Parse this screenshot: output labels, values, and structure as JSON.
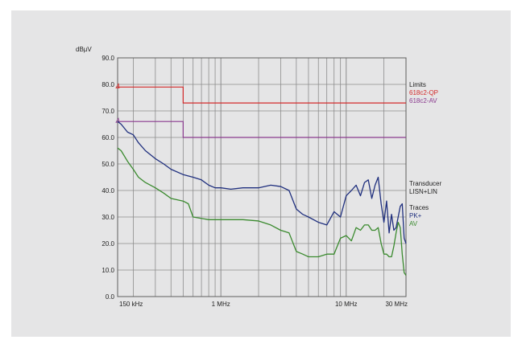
{
  "chart_data": {
    "type": "line",
    "ylabel": "dBµV",
    "yticks": [
      "90.0",
      "80.0",
      "70.0",
      "60.0",
      "50.0",
      "40.0",
      "30.0",
      "20.0",
      "10.0",
      "0.0"
    ],
    "ylim": [
      0,
      90
    ],
    "xscale": "log",
    "xlim_mhz": [
      0.15,
      30
    ],
    "xticks": [
      {
        "label": "150 kHz",
        "mhz": 0.15
      },
      {
        "label": "1 MHz",
        "mhz": 1
      },
      {
        "label": "10 MHz",
        "mhz": 10
      },
      {
        "label": "30 MHz",
        "mhz": 30
      }
    ],
    "grid": true,
    "legend": {
      "limits_title": "Limits",
      "limit_qp": "618c2-QP",
      "limit_av": "618c2-AV",
      "transducer_title": "Transducer",
      "transducer": "LISN+LIN",
      "traces_title": "Traces",
      "trace_pk": "PK+",
      "trace_av": "AV"
    },
    "limits": [
      {
        "name": "618c2-QP",
        "color": "#d42a2a",
        "points": [
          [
            0.15,
            79
          ],
          [
            0.5,
            79
          ],
          [
            0.5,
            73
          ],
          [
            30,
            73
          ]
        ]
      },
      {
        "name": "618c2-AV",
        "color": "#8a3a8e",
        "points": [
          [
            0.15,
            66
          ],
          [
            0.5,
            66
          ],
          [
            0.5,
            60
          ],
          [
            30,
            60
          ]
        ]
      }
    ],
    "series": [
      {
        "name": "PK+",
        "color": "#1f2f7e",
        "points": [
          [
            0.15,
            66
          ],
          [
            0.16,
            65
          ],
          [
            0.18,
            62
          ],
          [
            0.2,
            61
          ],
          [
            0.22,
            58
          ],
          [
            0.25,
            55
          ],
          [
            0.3,
            52
          ],
          [
            0.35,
            50
          ],
          [
            0.4,
            48
          ],
          [
            0.5,
            46
          ],
          [
            0.6,
            45
          ],
          [
            0.7,
            44
          ],
          [
            0.8,
            42
          ],
          [
            0.9,
            41
          ],
          [
            1,
            41
          ],
          [
            1.2,
            40.5
          ],
          [
            1.5,
            41
          ],
          [
            2,
            41
          ],
          [
            2.5,
            42
          ],
          [
            3,
            41.5
          ],
          [
            3.5,
            40
          ],
          [
            4,
            33
          ],
          [
            4.5,
            31
          ],
          [
            5,
            30
          ],
          [
            6,
            28
          ],
          [
            7,
            27
          ],
          [
            8,
            32
          ],
          [
            9,
            30
          ],
          [
            10,
            38
          ],
          [
            11,
            40
          ],
          [
            12,
            42
          ],
          [
            13,
            38
          ],
          [
            14,
            43
          ],
          [
            15,
            44
          ],
          [
            16,
            37
          ],
          [
            17,
            42
          ],
          [
            18,
            45
          ],
          [
            19,
            35
          ],
          [
            20,
            28
          ],
          [
            21,
            36
          ],
          [
            22,
            24
          ],
          [
            23,
            31
          ],
          [
            24,
            25
          ],
          [
            25,
            26
          ],
          [
            27,
            34
          ],
          [
            28,
            35
          ],
          [
            29,
            22
          ],
          [
            30,
            20
          ]
        ]
      },
      {
        "name": "AV",
        "color": "#3a8a2e",
        "points": [
          [
            0.15,
            56
          ],
          [
            0.16,
            55
          ],
          [
            0.18,
            51
          ],
          [
            0.2,
            48
          ],
          [
            0.22,
            45
          ],
          [
            0.25,
            43
          ],
          [
            0.3,
            41
          ],
          [
            0.35,
            39
          ],
          [
            0.4,
            37
          ],
          [
            0.5,
            36
          ],
          [
            0.55,
            35
          ],
          [
            0.6,
            30
          ],
          [
            0.8,
            29
          ],
          [
            1,
            29
          ],
          [
            1.5,
            29
          ],
          [
            2,
            28.5
          ],
          [
            2.5,
            27
          ],
          [
            3,
            25
          ],
          [
            3.5,
            24
          ],
          [
            4,
            17
          ],
          [
            4.5,
            16
          ],
          [
            5,
            15
          ],
          [
            6,
            15
          ],
          [
            7,
            16
          ],
          [
            8,
            16
          ],
          [
            9,
            22
          ],
          [
            10,
            23
          ],
          [
            11,
            21
          ],
          [
            12,
            26
          ],
          [
            13,
            25
          ],
          [
            14,
            27
          ],
          [
            15,
            27
          ],
          [
            16,
            25
          ],
          [
            17,
            25
          ],
          [
            18,
            26
          ],
          [
            19,
            20
          ],
          [
            20,
            16
          ],
          [
            21,
            16
          ],
          [
            22,
            15
          ],
          [
            23,
            15
          ],
          [
            24,
            19
          ],
          [
            25,
            24
          ],
          [
            26,
            28
          ],
          [
            27,
            26
          ],
          [
            28,
            16
          ],
          [
            29,
            9
          ],
          [
            30,
            8
          ]
        ]
      }
    ]
  }
}
